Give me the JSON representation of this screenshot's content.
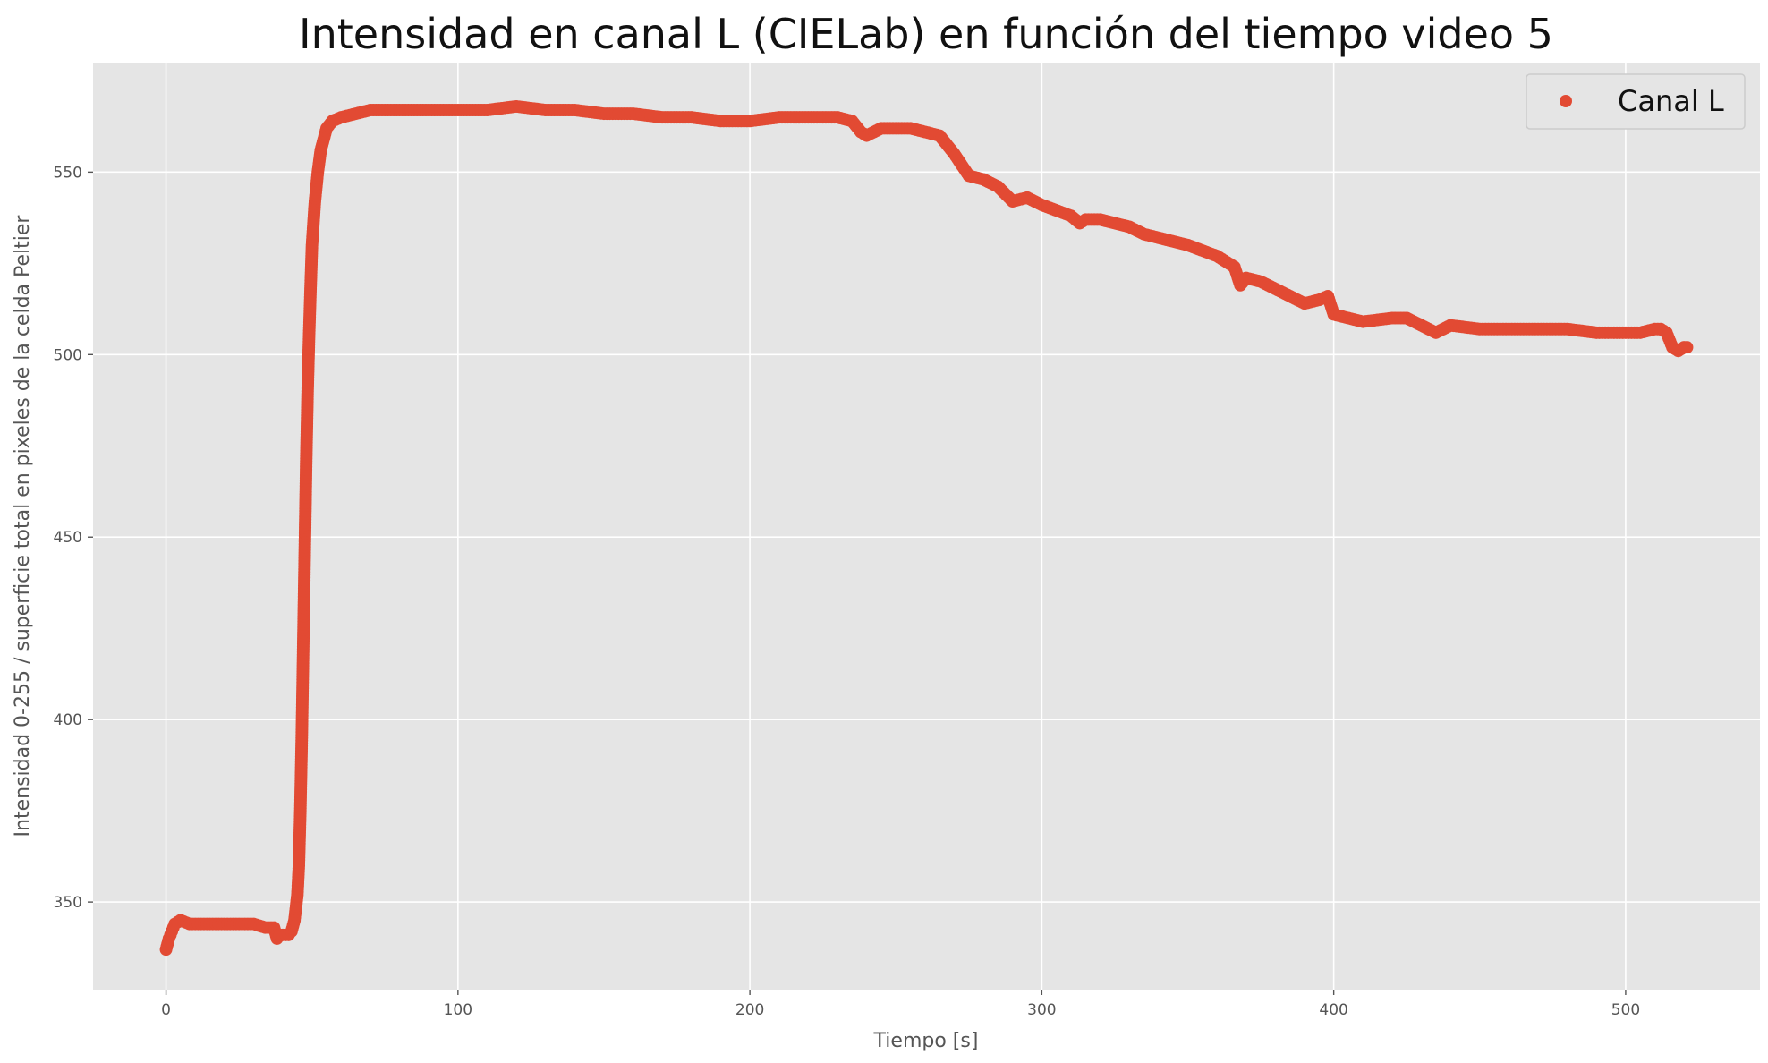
{
  "chart_data": {
    "type": "scatter",
    "title": "Intensidad en canal L (CIELab) en función del tiempo video 5",
    "xlabel": "Tiempo [s]",
    "ylabel": "Intensidad 0-255 / superficie total en pixeles de la celda Peltier",
    "xlim": [
      -25,
      546
    ],
    "ylim": [
      326,
      580
    ],
    "xticks": [
      0,
      100,
      200,
      300,
      400,
      500
    ],
    "yticks": [
      350,
      400,
      450,
      500,
      550
    ],
    "grid": true,
    "legend_position": "top-right",
    "colors": {
      "background": "#e5e5e5",
      "grid": "#ffffff",
      "series": "#e24a33"
    },
    "series": [
      {
        "name": "Canal L",
        "x": [
          0,
          1,
          2,
          3,
          5,
          8,
          12,
          16,
          20,
          25,
          30,
          34,
          37,
          38,
          39,
          40,
          41,
          42,
          43,
          44,
          45,
          45.5,
          46,
          46.5,
          47,
          47.5,
          48,
          48.5,
          49,
          49.5,
          50,
          51,
          52,
          53,
          54,
          55,
          57,
          60,
          65,
          70,
          80,
          90,
          100,
          110,
          120,
          130,
          140,
          150,
          160,
          170,
          180,
          190,
          200,
          210,
          220,
          230,
          235,
          238,
          240,
          245,
          250,
          255,
          260,
          265,
          270,
          275,
          280,
          285,
          290,
          295,
          300,
          310,
          313,
          315,
          320,
          330,
          335,
          340,
          350,
          360,
          366,
          368,
          370,
          375,
          385,
          390,
          395,
          398,
          400,
          405,
          410,
          420,
          425,
          430,
          435,
          440,
          450,
          460,
          470,
          480,
          490,
          500,
          505,
          510,
          512,
          514,
          516,
          518,
          520,
          521
        ],
        "y": [
          337,
          340,
          342,
          344,
          345,
          344,
          344,
          344,
          344,
          344,
          344,
          343,
          343,
          340,
          341,
          341,
          341,
          341,
          342,
          345,
          352,
          360,
          375,
          395,
          420,
          445,
          470,
          490,
          505,
          518,
          530,
          542,
          550,
          556,
          559,
          562,
          564,
          565,
          566,
          567,
          567,
          567,
          567,
          567,
          568,
          567,
          567,
          566,
          566,
          565,
          565,
          564,
          564,
          565,
          565,
          565,
          564,
          561,
          560,
          562,
          562,
          562,
          561,
          560,
          555,
          549,
          548,
          546,
          542,
          543,
          541,
          538,
          536,
          537,
          537,
          535,
          533,
          532,
          530,
          527,
          524,
          519,
          521,
          520,
          516,
          514,
          515,
          516,
          511,
          510,
          509,
          510,
          510,
          508,
          506,
          508,
          507,
          507,
          507,
          507,
          506,
          506,
          506,
          507,
          507,
          506,
          502,
          501,
          502,
          502
        ]
      }
    ]
  }
}
